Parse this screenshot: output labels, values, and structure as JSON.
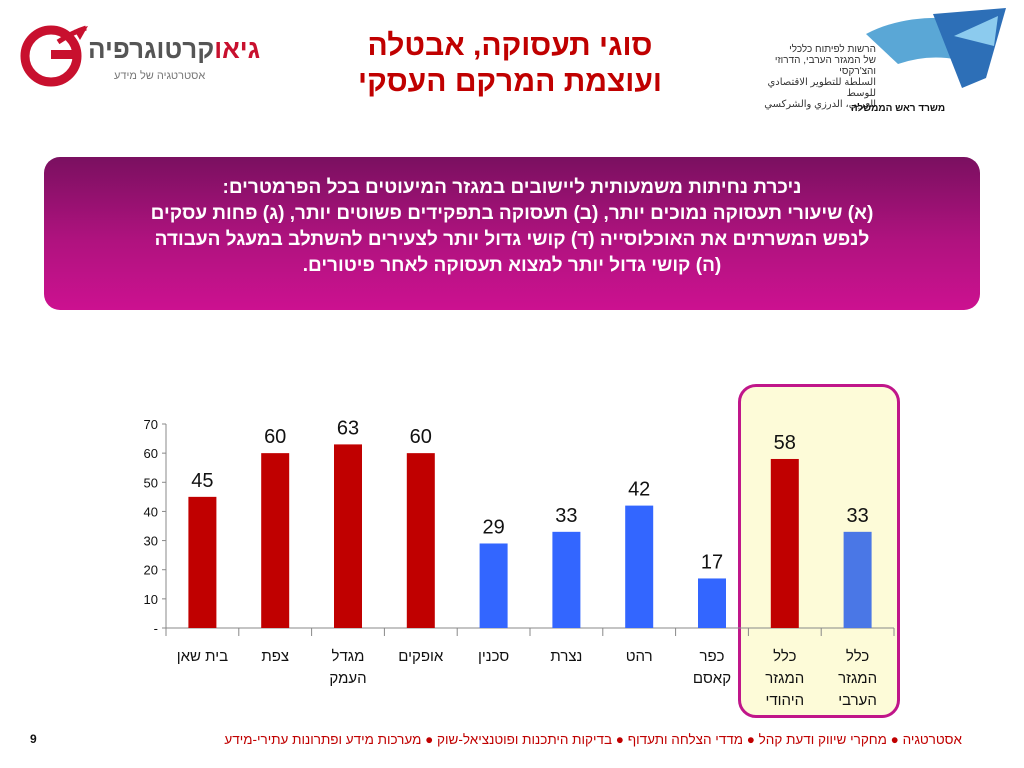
{
  "title_lines": [
    "סוגי תעסוקה, אבטלה",
    "ועוצמת המרקם העסקי"
  ],
  "logo_left": {
    "brand_red": "גיאו",
    "brand_gray": "קרטוגרפיה",
    "tagline": "אסטרטגיה של מידע"
  },
  "logo_right": {
    "lines": [
      "הרשות לפיתוח כלכלי",
      "של המגזר הערבי, הדרוזי והצ'רקסי",
      "السلطة للتطوير الاقتصادي للوسط",
      "العربي، الدرزي والشركسي"
    ],
    "office": "משרד ראש הממשלה"
  },
  "banner_lines": [
    "ניכרת נחיתות משמעותית ליישובים במגזר המיעוטים בכל הפרמטרים:",
    "(א) שיעורי תעסוקה נמוכים יותר, (ב) תעסוקה בתפקידים פשוטים יותר, (ג) פחות עסקים",
    "לנפש המשרתים את האוכלוסייה (ד) קושי גדול יותר לצעירים להשתלב במעגל העבודה",
    "(ה) קושי גדול יותר למצוא תעסוקה לאחר פיטורים."
  ],
  "chart_data": {
    "type": "bar",
    "categories": [
      [
        "בית שאן"
      ],
      [
        "צפת"
      ],
      [
        "מגדל",
        "העמק"
      ],
      [
        "אופקים"
      ],
      [
        "סכנין"
      ],
      [
        "נצרת"
      ],
      [
        "רהט"
      ],
      [
        "כפר",
        "קאסם"
      ],
      [
        "כלל",
        "המגזר",
        "היהודי"
      ],
      [
        "כלל",
        "המגזר",
        "הערבי"
      ]
    ],
    "values": [
      45,
      60,
      63,
      60,
      29,
      33,
      42,
      17,
      58,
      33
    ],
    "value_labels": [
      "45",
      "60",
      "63",
      "60",
      "29",
      "33",
      "42",
      "17",
      "58",
      "33"
    ],
    "bar_colors": [
      "#c00000",
      "#c00000",
      "#c00000",
      "#c00000",
      "#3366ff",
      "#3366ff",
      "#3366ff",
      "#3366ff",
      "#c00000",
      "#4a77e6"
    ],
    "ylim": [
      0,
      70
    ],
    "yticks": [
      0,
      10,
      20,
      30,
      40,
      50,
      60,
      70
    ],
    "ytick_labels": [
      "-",
      "10",
      "20",
      "30",
      "40",
      "50",
      "60",
      "70"
    ],
    "highlighted_categories": [
      8,
      9
    ],
    "grid": false
  },
  "footer": "אסטרטגיה ● מחקרי שיווק ודעת קהל ● מדדי הצלחה ותעדוף ● בדיקות היתכנות ופוטנציאל-שוק ● מערכות מידע ופתרונות עתירי-מידע",
  "page_number": "9"
}
